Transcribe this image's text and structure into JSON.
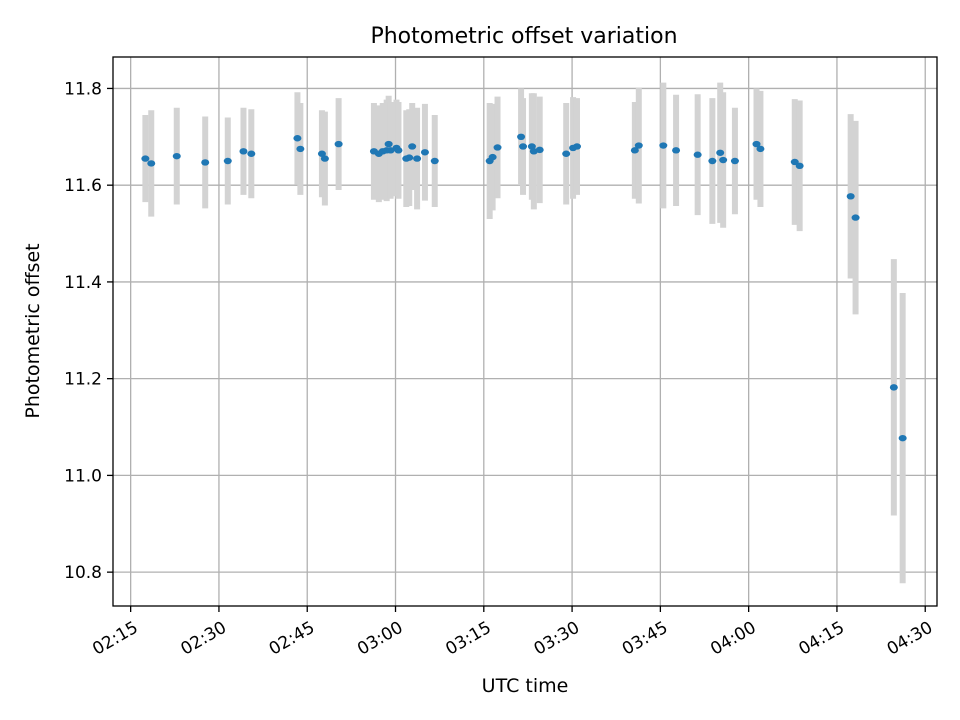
{
  "chart_data": {
    "type": "scatter",
    "title": "Photometric offset variation",
    "xlabel": "UTC time",
    "ylabel": "Photometric offset",
    "x_tick_labels": [
      "02:15",
      "02:30",
      "02:45",
      "03:00",
      "03:15",
      "03:30",
      "03:45",
      "04:00",
      "04:15",
      "04:30"
    ],
    "y_tick_labels": [
      "10.8",
      "11.0",
      "11.2",
      "11.4",
      "11.6",
      "11.8"
    ],
    "y_ticks": [
      10.8,
      11.0,
      11.2,
      11.4,
      11.6,
      11.8
    ],
    "xlim": [
      "02:12",
      "04:32"
    ],
    "ylim": [
      10.73,
      11.865
    ],
    "grid": true,
    "point_color": "#1f77b4",
    "errorbar_color": "#d3d3d3",
    "x": [
      "02:17:30",
      "02:18:30",
      "02:22:50",
      "02:27:40",
      "02:31:30",
      "02:34:10",
      "02:35:30",
      "02:43:20",
      "02:43:50",
      "02:47:30",
      "02:48:00",
      "02:50:20",
      "02:56:20",
      "02:57:10",
      "02:57:50",
      "02:58:30",
      "02:58:50",
      "02:59:10",
      "03:00:10",
      "03:00:30",
      "03:01:50",
      "03:02:20",
      "03:02:50",
      "03:03:40",
      "03:05:00",
      "03:06:40",
      "03:16:00",
      "03:16:30",
      "03:17:20",
      "03:21:20",
      "03:21:40",
      "03:23:10",
      "03:23:30",
      "03:24:30",
      "03:29:00",
      "03:30:10",
      "03:30:50",
      "03:40:40",
      "03:41:20",
      "03:45:30",
      "03:47:40",
      "03:51:20",
      "03:53:50",
      "03:55:10",
      "03:55:40",
      "03:57:40",
      "04:01:20",
      "04:02:00",
      "04:07:50",
      "04:08:40",
      "04:17:20",
      "04:18:10",
      "04:24:40",
      "04:26:10"
    ],
    "y": [
      11.655,
      11.645,
      11.66,
      11.647,
      11.65,
      11.67,
      11.665,
      11.697,
      11.675,
      11.665,
      11.655,
      11.685,
      11.67,
      11.665,
      11.67,
      11.672,
      11.685,
      11.672,
      11.677,
      11.672,
      11.655,
      11.657,
      11.68,
      11.655,
      11.668,
      11.65,
      11.65,
      11.658,
      11.678,
      11.7,
      11.68,
      11.68,
      11.67,
      11.673,
      11.665,
      11.677,
      11.68,
      11.672,
      11.682,
      11.682,
      11.672,
      11.663,
      11.65,
      11.667,
      11.652,
      11.65,
      11.685,
      11.675,
      11.648,
      11.64,
      11.577,
      11.533,
      11.182,
      11.077
    ],
    "err": [
      0.09,
      0.11,
      0.1,
      0.095,
      0.09,
      0.09,
      0.092,
      0.095,
      0.095,
      0.09,
      0.097,
      0.095,
      0.1,
      0.1,
      0.1,
      0.105,
      0.1,
      0.1,
      0.1,
      0.1,
      0.1,
      0.1,
      0.09,
      0.105,
      0.1,
      0.095,
      0.12,
      0.11,
      0.105,
      0.1,
      0.1,
      0.11,
      0.12,
      0.11,
      0.105,
      0.105,
      0.1,
      0.1,
      0.12,
      0.13,
      0.115,
      0.125,
      0.13,
      0.145,
      0.14,
      0.11,
      0.115,
      0.12,
      0.13,
      0.135,
      0.17,
      0.2,
      0.265,
      0.3
    ]
  }
}
